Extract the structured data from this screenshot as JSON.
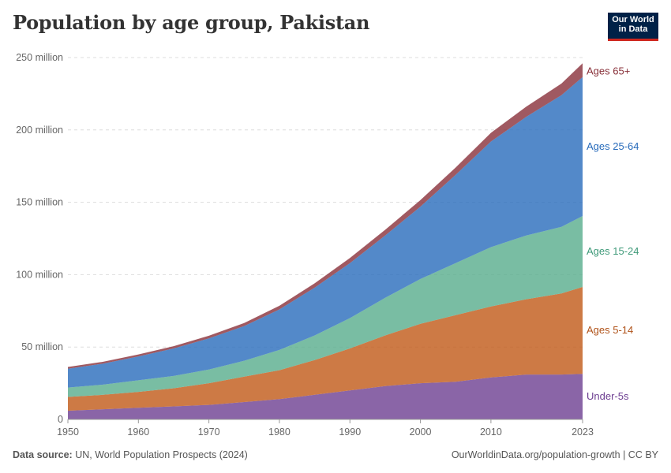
{
  "header": {
    "title": "Population by age group, Pakistan",
    "logo_line1": "Our World",
    "logo_line2": "in Data"
  },
  "footer": {
    "source_label": "Data source:",
    "source_text": "UN, World Population Prospects (2024)",
    "credit": "OurWorldinData.org/population-growth | CC BY"
  },
  "chart_data": {
    "type": "area",
    "stacked": true,
    "x": [
      1950,
      1955,
      1960,
      1965,
      1970,
      1975,
      1980,
      1985,
      1990,
      1995,
      2000,
      2005,
      2010,
      2015,
      2020,
      2023
    ],
    "series": [
      {
        "name": "Under-5s",
        "color": "#6d3e91",
        "values": [
          6,
          7,
          8,
          9,
          10,
          12,
          14,
          17,
          20,
          23,
          25,
          26,
          29,
          31,
          31,
          31.5
        ]
      },
      {
        "name": "Ages 5-14",
        "color": "#c05917",
        "values": [
          9.5,
          10,
          11,
          12.5,
          15,
          17.5,
          20,
          24,
          29,
          35,
          41,
          46,
          49,
          52,
          56,
          60
        ]
      },
      {
        "name": "Ages 15-24",
        "color": "#58ac8c",
        "values": [
          6.5,
          7,
          8,
          8.5,
          9.5,
          11,
          14,
          17,
          21,
          26,
          31,
          36,
          41,
          44,
          46,
          49
        ]
      },
      {
        "name": "Ages 25-64",
        "color": "#286bbb",
        "values": [
          13,
          14.5,
          16.5,
          19,
          21.5,
          24,
          28,
          33,
          38,
          43,
          50,
          61,
          73,
          82,
          91,
          96
        ]
      },
      {
        "name": "Ages 65+",
        "color": "#883039",
        "values": [
          1.2,
          1.3,
          1.4,
          1.6,
          1.8,
          2.1,
          2.5,
          3,
          3.5,
          4,
          4.5,
          5,
          6,
          7,
          8,
          9.5
        ]
      }
    ],
    "y_ticks": [
      0,
      50,
      100,
      150,
      200,
      250
    ],
    "y_tick_labels": [
      "0",
      "50 million",
      "100 million",
      "150 million",
      "200 million",
      "250 million"
    ],
    "x_ticks": [
      1950,
      1960,
      1970,
      1980,
      1990,
      2000,
      2010,
      2023
    ],
    "x_tick_labels": [
      "1950",
      "1960",
      "1970",
      "1980",
      "1990",
      "2000",
      "2010",
      "2023"
    ],
    "ylim": [
      0,
      250
    ],
    "xlim": [
      1950,
      2023
    ],
    "grid": true,
    "legend": "right-inline-labels",
    "label_colors": [
      "#6d3e91",
      "#b0531a",
      "#3f9a79",
      "#286bbb",
      "#883039"
    ]
  }
}
